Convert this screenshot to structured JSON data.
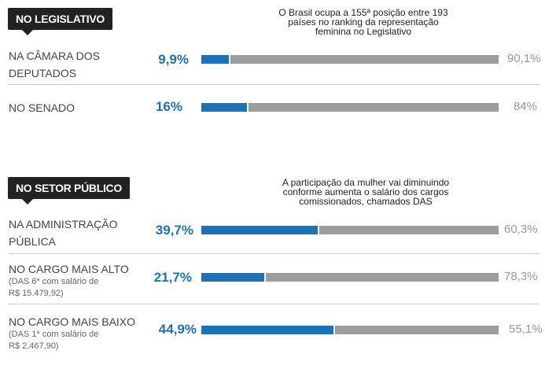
{
  "chart_data": [
    {
      "type": "bar",
      "section": "NO LEGISLATIVO",
      "note": "O Brasil ocupa a 155ª posição entre 193 países no ranking da representação feminina no Legislativo",
      "rows": [
        {
          "label_lines": [
            "NA CÂMARA DOS",
            "DEPUTADOS"
          ],
          "sub_lines": [],
          "women": 9.9,
          "women_label": "9,9%",
          "men_label": "90,1%"
        },
        {
          "label_lines": [
            "NO SENADO"
          ],
          "sub_lines": [],
          "women": 16,
          "women_label": "16%",
          "men_label": "84%"
        }
      ],
      "colors": {
        "women": "#1a73b8",
        "men": "#9d9d9f"
      }
    },
    {
      "type": "bar",
      "section": "NO SETOR PÚBLICO",
      "note": "A participação da mulher vai diminuindo conforme aumenta o salário dos cargos comissionados, chamados DAS",
      "rows": [
        {
          "label_lines": [
            "NA ADMINISTRAÇÃO",
            "PÚBLICA"
          ],
          "sub_lines": [],
          "women": 39.7,
          "women_label": "39,7%",
          "men_label": "60,3%"
        },
        {
          "label_lines": [
            "NO CARGO MAIS ALTO"
          ],
          "sub_lines": [
            "(DAS 6* com salário de",
            "R$ 15.479,92)"
          ],
          "women": 21.7,
          "women_label": "21,7%",
          "men_label": "78,3%"
        },
        {
          "label_lines": [
            "NO CARGO MAIS BAIXO"
          ],
          "sub_lines": [
            "(DAS 1* com salário de",
            "R$ 2.467,90)"
          ],
          "women": 44.9,
          "women_label": "44,9%",
          "men_label": "55,1%"
        }
      ],
      "colors": {
        "women": "#1a73b8",
        "men": "#9d9d9f"
      }
    }
  ]
}
